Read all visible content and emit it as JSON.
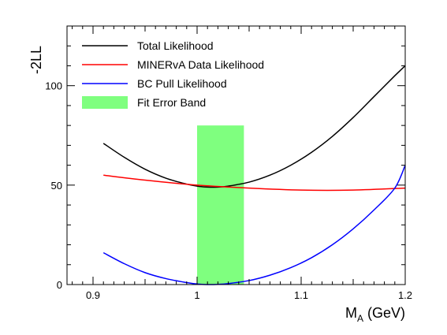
{
  "chart_data": {
    "type": "line",
    "xlabel_main": "M",
    "xlabel_sub": "A",
    "xlabel_tail": " (GeV)",
    "ylabel": "-2LL",
    "xlim": [
      0.875,
      1.2
    ],
    "ylim": [
      0,
      130
    ],
    "x_ticks": [
      0.9,
      1,
      1.1,
      1.2
    ],
    "x_tick_labels": [
      "0.9",
      "1",
      "1.1",
      "1.2"
    ],
    "y_ticks": [
      0,
      50,
      100
    ],
    "y_tick_labels": [
      "0",
      "50",
      "100"
    ],
    "grid": false,
    "legend_position": "top-left",
    "series": [
      {
        "name": "Total Likelihood",
        "color": "#000000",
        "x": [
          0.91,
          0.93,
          0.95,
          0.97,
          0.99,
          1.0,
          1.01,
          1.02,
          1.03,
          1.05,
          1.07,
          1.09,
          1.11,
          1.13,
          1.15,
          1.17,
          1.19,
          1.2
        ],
        "y": [
          71,
          64,
          58,
          53.5,
          50.5,
          49.5,
          49,
          49,
          49.5,
          51.5,
          55,
          60,
          66.5,
          74.5,
          84,
          94.5,
          105,
          110
        ]
      },
      {
        "name": "MINERvA Data Likelihood",
        "color": "#ff0000",
        "x": [
          0.91,
          0.95,
          1.0,
          1.05,
          1.1,
          1.15,
          1.2
        ],
        "y": [
          55,
          52.5,
          50,
          48.5,
          47.5,
          47.5,
          48.5
        ]
      },
      {
        "name": "BC Pull Likelihood",
        "color": "#0000ff",
        "x": [
          0.91,
          0.93,
          0.95,
          0.97,
          0.99,
          1.0,
          1.01,
          1.02,
          1.03,
          1.05,
          1.07,
          1.09,
          1.11,
          1.13,
          1.15,
          1.17,
          1.19,
          1.2
        ],
        "y": [
          16,
          10.5,
          6,
          3,
          1,
          0.3,
          0,
          0.1,
          0.5,
          2,
          4.7,
          8.5,
          13.5,
          20,
          28,
          37.5,
          48.5,
          60
        ]
      }
    ],
    "band": {
      "name": "Fit Error Band",
      "color": "#7fff7f",
      "x_range": [
        1.0,
        1.045
      ],
      "y_range": [
        0,
        80
      ]
    }
  }
}
